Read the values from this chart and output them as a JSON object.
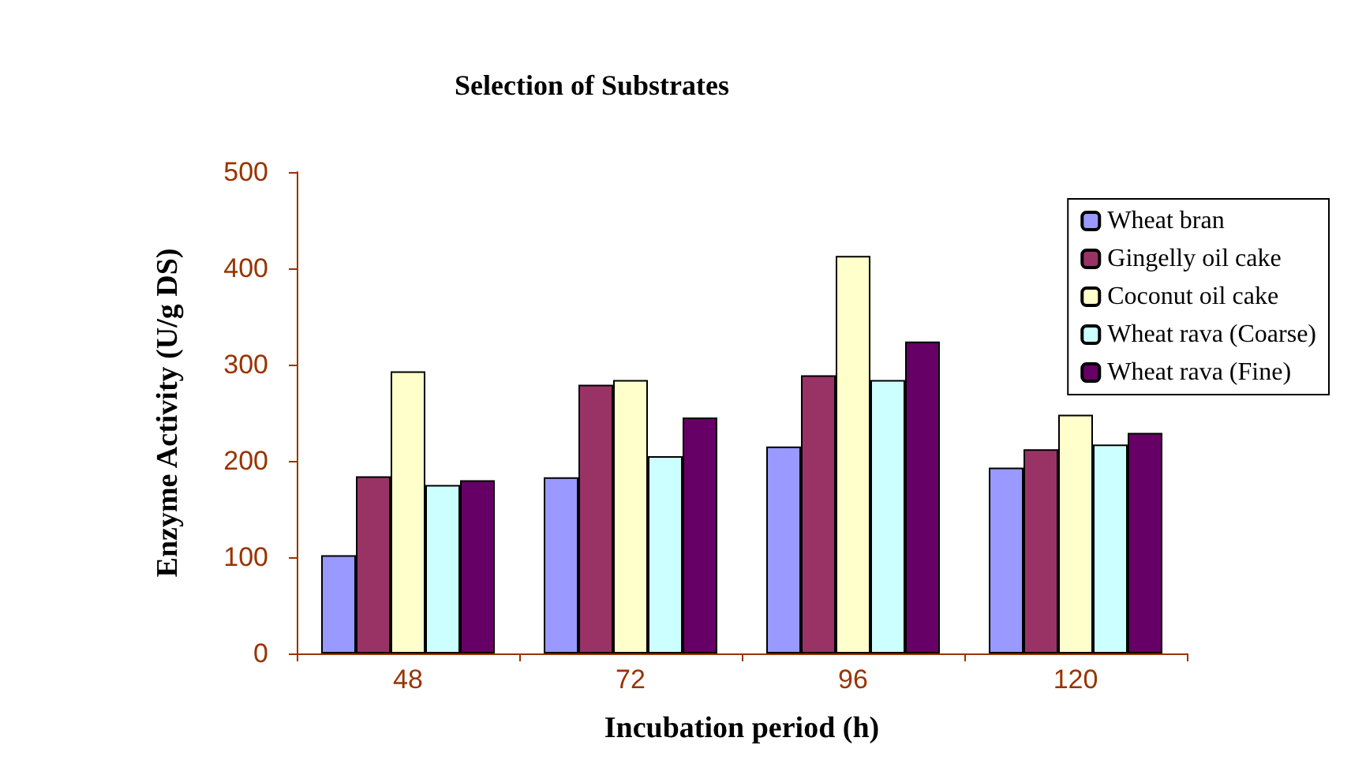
{
  "chart_data": {
    "type": "bar",
    "title": "Selection of Substrates",
    "xlabel": "Incubation period (h)",
    "ylabel": "Enzyme Activity (U/g DS)",
    "categories": [
      "48",
      "72",
      "96",
      "120"
    ],
    "series": [
      {
        "name": "Wheat bran",
        "color": "#9999ff",
        "values": [
          102,
          183,
          215,
          193
        ]
      },
      {
        "name": "Gingelly oil cake",
        "color": "#993366",
        "values": [
          184,
          279,
          289,
          212
        ]
      },
      {
        "name": "Coconut oil cake",
        "color": "#ffffcc",
        "values": [
          293,
          284,
          413,
          248
        ]
      },
      {
        "name": "Wheat rava (Coarse)",
        "color": "#ccffff",
        "values": [
          175,
          205,
          284,
          217
        ]
      },
      {
        "name": "Wheat rava (Fine)",
        "color": "#660066",
        "values": [
          180,
          245,
          324,
          229
        ]
      }
    ],
    "ylim": [
      0,
      500
    ],
    "yticks": [
      0,
      100,
      200,
      300,
      400,
      500
    ],
    "grid": false,
    "legend": "top right"
  }
}
